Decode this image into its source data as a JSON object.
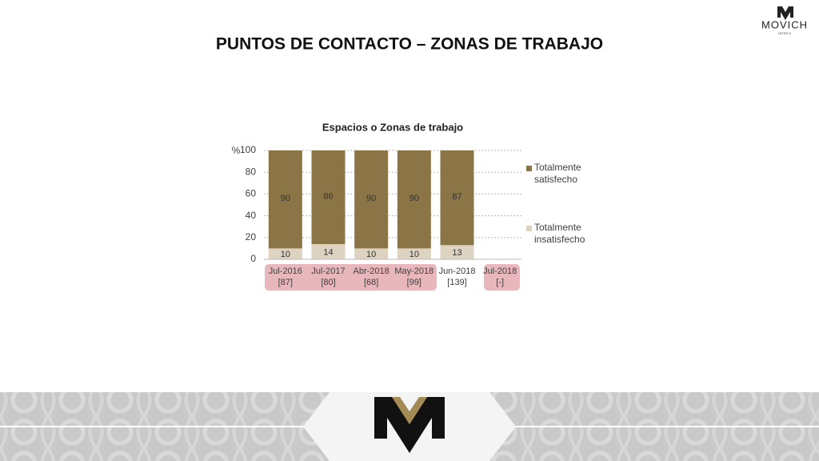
{
  "header": {
    "title": "PUNTOS DE CONTACTO – ZONAS DE TRABAJO",
    "logo": "MOVICH",
    "logo_sub": "HOTELS"
  },
  "chart_data": {
    "type": "stacked_bar",
    "title": "Espacios o Zonas de trabajo",
    "ylabel": "%",
    "categories": [
      "Jul-2016",
      "Jul-2017",
      "Abr-2018",
      "May-2018",
      "Jun-2018",
      "Jul-2018"
    ],
    "category_notes": [
      "[87]",
      "[80]",
      "[68]",
      "[99]",
      "[139]",
      "[-]"
    ],
    "series": [
      {
        "name": "Totalmente insatisfecho",
        "color": "#ddd3c0",
        "values": [
          10,
          14,
          10,
          10,
          13,
          null
        ]
      },
      {
        "name": "Totalmente satisfecho",
        "color": "#8b7547",
        "values": [
          90,
          86,
          90,
          90,
          87,
          null
        ]
      }
    ],
    "ylim": [
      0,
      100
    ],
    "yticks": [
      0,
      20,
      40,
      60,
      80,
      100
    ],
    "grid": true,
    "legend": "right"
  }
}
